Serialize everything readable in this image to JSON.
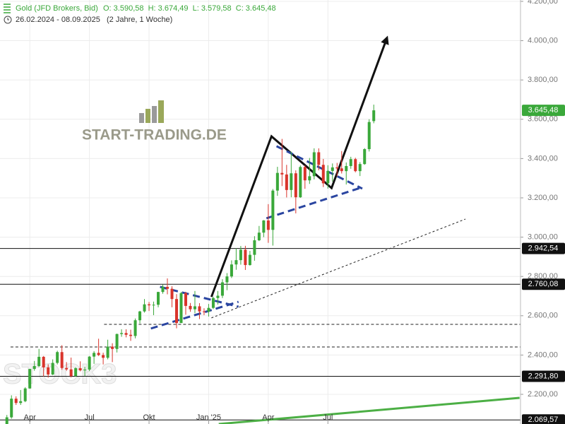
{
  "chart_data": {
    "type": "candlestick",
    "series_name": "Gold (JFD Brokers, Bid)",
    "ohlc_text": "O: 3.590,58  H: 3.674,49  L: 3.579,58  C: 3.645,48",
    "period": "26.02.2024 - 08.09.2025",
    "period_note": "(2 Jahre, 1 Woche)",
    "watermark": "START-TRADING.DE",
    "watermark2": "STOCK3",
    "up_color": "#3aa83a",
    "down_color": "#d9342b",
    "x": [
      0,
      1,
      2,
      3,
      4,
      5,
      6,
      7,
      8,
      9,
      10,
      11,
      12,
      13,
      14,
      15,
      16,
      17,
      18,
      19,
      20,
      21,
      22,
      23,
      24,
      25,
      26,
      27,
      28,
      29,
      30,
      31,
      32,
      33,
      34,
      35,
      36,
      37,
      38,
      39,
      40,
      41,
      42,
      43,
      44,
      45,
      46,
      47,
      48,
      49,
      50,
      51,
      52,
      53,
      54,
      55,
      56,
      57,
      58,
      59,
      60,
      61,
      62,
      63,
      64,
      65,
      66,
      67,
      68,
      69,
      70,
      71,
      72,
      73,
      74,
      75,
      76,
      77,
      78,
      79,
      80
    ],
    "open": [
      2035,
      2083,
      2178,
      2156,
      2165,
      2230,
      2329,
      2344,
      2391,
      2337,
      2301,
      2360,
      2415,
      2334,
      2327,
      2293,
      2333,
      2322,
      2326,
      2392,
      2411,
      2400,
      2386,
      2443,
      2431,
      2507,
      2512,
      2503,
      2497,
      2577,
      2622,
      2658,
      2653,
      2656,
      2721,
      2747,
      2737,
      2685,
      2563,
      2715,
      2650,
      2633,
      2648,
      2622,
      2621,
      2640,
      2690,
      2702,
      2770,
      2800,
      2861,
      2883,
      2936,
      2858,
      2910,
      2984,
      3023,
      3085,
      3037,
      3237,
      3327,
      3319,
      3240,
      3325,
      3203,
      3357,
      3289,
      3310,
      3432,
      3368,
      3274,
      3337,
      3355,
      3350,
      3336,
      3362,
      3397,
      3336,
      3372,
      3448,
      3590.58
    ],
    "high": [
      2095,
      2195,
      2190,
      2222,
      2236,
      2330,
      2370,
      2431,
      2395,
      2353,
      2378,
      2422,
      2450,
      2364,
      2387,
      2338,
      2368,
      2340,
      2395,
      2420,
      2483,
      2412,
      2478,
      2460,
      2509,
      2531,
      2531,
      2529,
      2586,
      2625,
      2685,
      2670,
      2672,
      2722,
      2758,
      2790,
      2750,
      2710,
      2721,
      2722,
      2665,
      2726,
      2664,
      2638,
      2660,
      2697,
      2726,
      2786,
      2817,
      2882,
      2943,
      2955,
      2956,
      2930,
      3005,
      3057,
      3087,
      3168,
      3245,
      3358,
      3500,
      3368,
      3435,
      3340,
      3365,
      3366,
      3403,
      3452,
      3452,
      3398,
      3366,
      3375,
      3378,
      3438,
      3380,
      3409,
      3404,
      3382,
      3453,
      3600,
      3674.49
    ],
    "low": [
      2024,
      2076,
      2146,
      2146,
      2160,
      2228,
      2320,
      2338,
      2291,
      2285,
      2298,
      2352,
      2325,
      2320,
      2286,
      2290,
      2317,
      2293,
      2318,
      2355,
      2395,
      2352,
      2378,
      2364,
      2413,
      2493,
      2490,
      2472,
      2485,
      2561,
      2616,
      2624,
      2603,
      2643,
      2712,
      2709,
      2643,
      2536,
      2563,
      2605,
      2620,
      2613,
      2583,
      2603,
      2596,
      2634,
      2657,
      2690,
      2730,
      2792,
      2834,
      2860,
      2833,
      2855,
      2880,
      2980,
      3000,
      2971,
      2957,
      3210,
      3260,
      3202,
      3203,
      3121,
      3200,
      3246,
      3271,
      3294,
      3340,
      3255,
      3247,
      3283,
      3310,
      3324,
      3268,
      3348,
      3330,
      3311,
      3368,
      3436,
      3579.58
    ],
    "close": [
      2083,
      2178,
      2156,
      2165,
      2230,
      2329,
      2344,
      2391,
      2337,
      2301,
      2360,
      2415,
      2334,
      2327,
      2293,
      2333,
      2322,
      2326,
      2392,
      2411,
      2400,
      2386,
      2443,
      2431,
      2507,
      2512,
      2503,
      2497,
      2577,
      2622,
      2658,
      2653,
      2656,
      2721,
      2747,
      2737,
      2685,
      2563,
      2715,
      2650,
      2633,
      2648,
      2622,
      2621,
      2640,
      2690,
      2702,
      2770,
      2800,
      2861,
      2883,
      2936,
      2858,
      2910,
      2984,
      3023,
      3085,
      3037,
      3237,
      3327,
      3319,
      3240,
      3325,
      3203,
      3357,
      3289,
      3310,
      3432,
      3368,
      3274,
      3337,
      3355,
      3350,
      3336,
      3362,
      3397,
      3336,
      3372,
      3448,
      3586,
      3645.48
    ],
    "xlim": [
      -1.5,
      112
    ],
    "ylim": [
      2049,
      4207
    ],
    "xticks": [
      {
        "value": 5,
        "label": "Apr"
      },
      {
        "value": 18,
        "label": "Jul"
      },
      {
        "value": 31,
        "label": "Okt"
      },
      {
        "value": 44,
        "label": "Jan '25"
      },
      {
        "value": 57,
        "label": "Apr"
      },
      {
        "value": 70,
        "label": "Jul"
      }
    ],
    "yticks": [
      {
        "value": 2200,
        "label": "2.200,00"
      },
      {
        "value": 2400,
        "label": "2.400,00"
      },
      {
        "value": 2600,
        "label": "2.600,00"
      },
      {
        "value": 2800,
        "label": "2.800,00"
      },
      {
        "value": 3000,
        "label": "3.000,00"
      },
      {
        "value": 3200,
        "label": "3.200,00"
      },
      {
        "value": 3400,
        "label": "3.400,00"
      },
      {
        "value": 3600,
        "label": "3.600,00"
      },
      {
        "value": 3800,
        "label": "3.800,00"
      },
      {
        "value": 4000,
        "label": "4.000,00"
      },
      {
        "value": 4200,
        "label": "4.200,00"
      }
    ],
    "grid": true,
    "last_price": {
      "value": 3645.48,
      "label": "3.645,48"
    },
    "levels": [
      {
        "value": 2942.54,
        "label": "2.942,54"
      },
      {
        "value": 2760.08,
        "label": "2.760,08"
      },
      {
        "value": 2291.8,
        "label": "2.291,80"
      },
      {
        "value": 2069.57,
        "label": "2.069,57"
      }
    ],
    "dashed_levels": [
      {
        "value": 2556,
        "x_start": 21.2
      },
      {
        "value": 2441,
        "x_start": 0.8
      }
    ],
    "trendlines": [
      {
        "color": "#111111",
        "width": 3,
        "dash": "none",
        "arrow": true,
        "points": [
          [
            44.6,
            2696
          ],
          [
            57.7,
            3513
          ],
          [
            70.8,
            3250
          ],
          [
            82.8,
            4009
          ]
        ]
      },
      {
        "color": "#2a45a0",
        "width": 3,
        "dash": "10,6",
        "arrow": false,
        "points": [
          [
            33.4,
            2747
          ],
          [
            50.5,
            2646
          ]
        ]
      },
      {
        "color": "#2a45a0",
        "width": 3,
        "dash": "10,6",
        "arrow": false,
        "points": [
          [
            31.4,
            2535
          ],
          [
            50.5,
            2671
          ]
        ]
      },
      {
        "color": "#2a45a0",
        "width": 3,
        "dash": "10,6",
        "arrow": false,
        "points": [
          [
            58.8,
            3463
          ],
          [
            77.5,
            3247
          ]
        ]
      },
      {
        "color": "#2a45a0",
        "width": 3,
        "dash": "10,6",
        "arrow": false,
        "points": [
          [
            56.6,
            3096
          ],
          [
            77.5,
            3254
          ]
        ]
      },
      {
        "color": "#222222",
        "width": 1,
        "dash": "3,3",
        "arrow": false,
        "points": [
          [
            44.6,
            2589
          ],
          [
            100,
            3092
          ]
        ]
      },
      {
        "color": "#4caf45",
        "width": 3,
        "dash": "none",
        "arrow": false,
        "points": [
          [
            46.2,
            2049
          ],
          [
            111.8,
            2182
          ]
        ]
      }
    ]
  }
}
